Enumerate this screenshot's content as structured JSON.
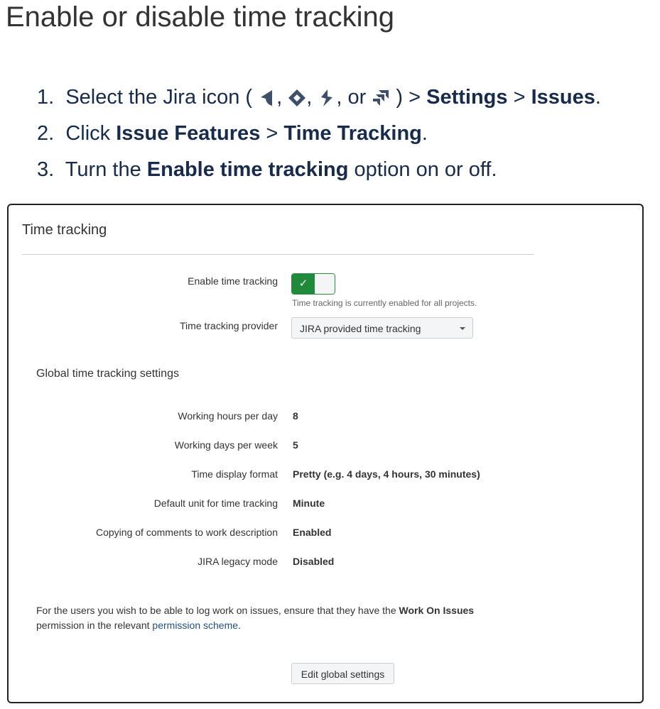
{
  "title": "Enable or disable time tracking",
  "steps": {
    "s1": {
      "num": "1.",
      "pre": "Select the Jira icon (",
      "sep1": ",",
      "sep2": ",",
      "sep3": ", or",
      "post": ") >",
      "b1": "Settings",
      "gt": ">",
      "b2": "Issues",
      "end": ".",
      "icons": [
        "jira-software-icon",
        "jira-service-desk-icon",
        "jira-core-icon",
        "jira-ops-icon"
      ]
    },
    "s2": {
      "num": "2.",
      "pre": "Click",
      "b1": "Issue Features",
      "gt": ">",
      "b2": "Time Tracking",
      "end": "."
    },
    "s3": {
      "num": "3.",
      "pre": "Turn the",
      "b1": "Enable time tracking",
      "post": "option on or off."
    }
  },
  "panel": {
    "heading": "Time tracking",
    "enable_label": "Enable time tracking",
    "toggle_on": true,
    "toggle_check": "✓",
    "enable_help": "Time tracking is currently enabled for all projects.",
    "provider_label": "Time tracking provider",
    "provider_value": "JIRA provided time tracking",
    "global_heading": "Global time tracking settings",
    "settings": [
      {
        "label": "Working hours per day",
        "value": "8"
      },
      {
        "label": "Working days per week",
        "value": "5"
      },
      {
        "label": "Time display format",
        "value": "Pretty (e.g. 4 days, 4 hours, 30 minutes)"
      },
      {
        "label": "Default unit for time tracking",
        "value": "Minute"
      },
      {
        "label": "Copying of comments to work description",
        "value": "Enabled"
      },
      {
        "label": "JIRA legacy mode",
        "value": "Disabled"
      }
    ],
    "note_pre": "For the users you wish to be able to log work on issues, ensure that they have the",
    "note_bold": "Work On Issues",
    "note_mid": "permission in the relevant",
    "note_link": "permission scheme",
    "note_end": ".",
    "edit_button": "Edit global settings",
    "accent": "#1f8a3a"
  }
}
